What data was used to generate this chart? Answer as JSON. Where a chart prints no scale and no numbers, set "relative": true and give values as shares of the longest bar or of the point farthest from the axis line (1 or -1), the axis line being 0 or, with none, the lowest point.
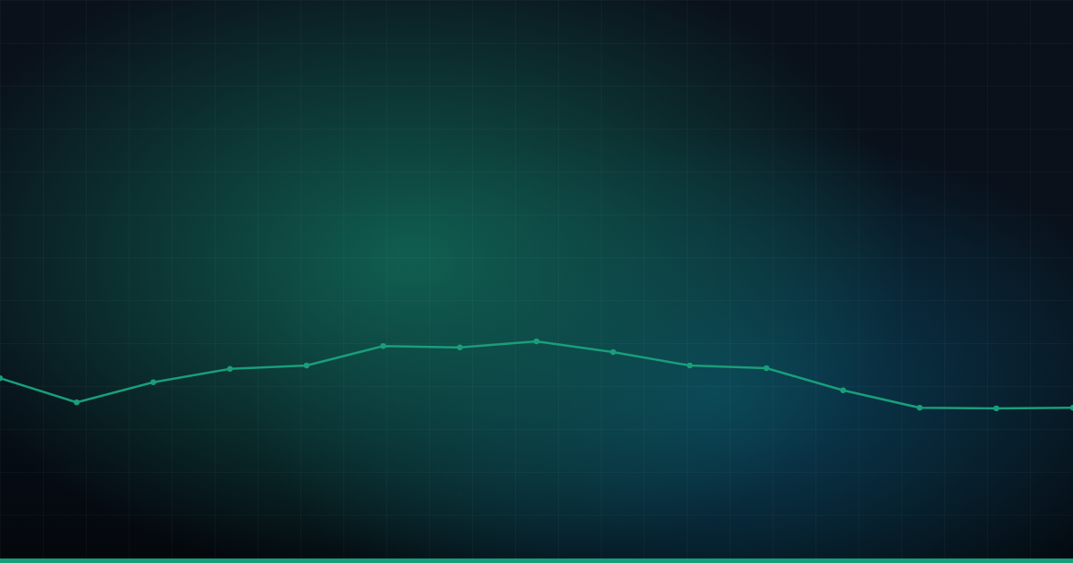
{
  "chart_data": {
    "type": "line",
    "relative": true,
    "categories": [
      null,
      null,
      null,
      null,
      null,
      null,
      null,
      null,
      null,
      null,
      null,
      null,
      null,
      null,
      null
    ],
    "series": [
      {
        "color": "#1a9e7a",
        "marker": "circle",
        "values": [
          0.45,
          0.09,
          0.39,
          0.59,
          0.64,
          0.93,
          0.91,
          1.0,
          0.84,
          0.64,
          0.6,
          0.27,
          0.01,
          0,
          0.01
        ]
      }
    ]
  }
}
